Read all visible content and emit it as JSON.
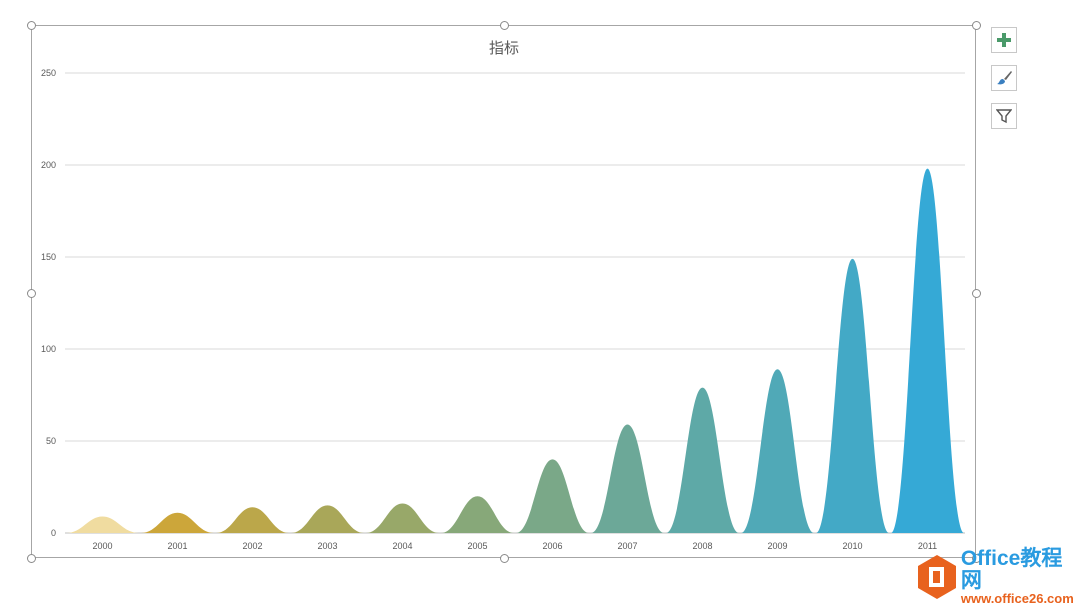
{
  "chart_data": {
    "type": "area",
    "title": "指标",
    "categories": [
      "2000",
      "2001",
      "2002",
      "2003",
      "2004",
      "2005",
      "2006",
      "2007",
      "2008",
      "2009",
      "2010",
      "2011"
    ],
    "values": [
      9,
      11,
      14,
      15,
      16,
      20,
      40,
      59,
      79,
      89,
      149,
      198
    ],
    "ylim": [
      0,
      250
    ],
    "yticks": [
      0,
      50,
      100,
      150,
      200,
      250
    ],
    "grid": true,
    "xlabel": "",
    "ylabel": "",
    "color_start": "#f0dca0",
    "color_end": "#35a9d6"
  },
  "side_buttons": [
    "chart-elements-icon",
    "chart-styles-icon",
    "chart-filters-icon"
  ],
  "watermark": {
    "line1": "Office教程网",
    "line2": "www.office26.com"
  }
}
